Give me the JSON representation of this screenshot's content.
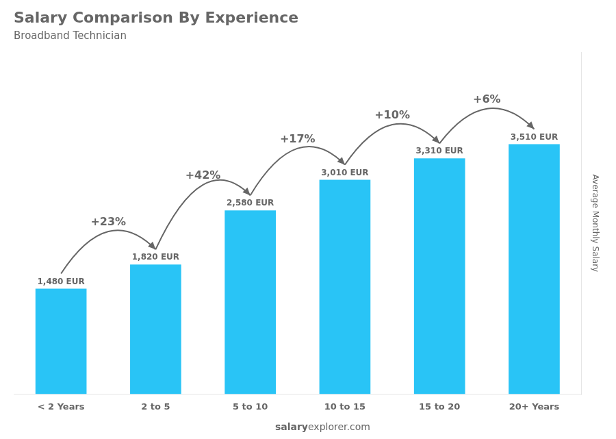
{
  "chart_data": {
    "type": "bar",
    "title": "Salary Comparison By Experience",
    "subtitle": "Broadband Technician",
    "ylabel": "Average Monthly Salary",
    "footer": [
      "salary",
      "explorer.com"
    ],
    "categories": [
      "< 2 Years",
      "2 to 5",
      "5 to 10",
      "10 to 15",
      "15 to 20",
      "20+ Years"
    ],
    "values": [
      1480,
      1820,
      2580,
      3010,
      3310,
      3510
    ],
    "value_labels": [
      "1,480 EUR",
      "1,820 EUR",
      "2,580 EUR",
      "3,010 EUR",
      "3,310 EUR",
      "3,510 EUR"
    ],
    "data_labels": true,
    "annotations": [
      "+23%",
      "+42%",
      "+17%",
      "+10%",
      "+6%"
    ],
    "color": "#29c4f6",
    "ylim": [
      0,
      4800
    ],
    "grid": false,
    "tick_labels": "x"
  }
}
